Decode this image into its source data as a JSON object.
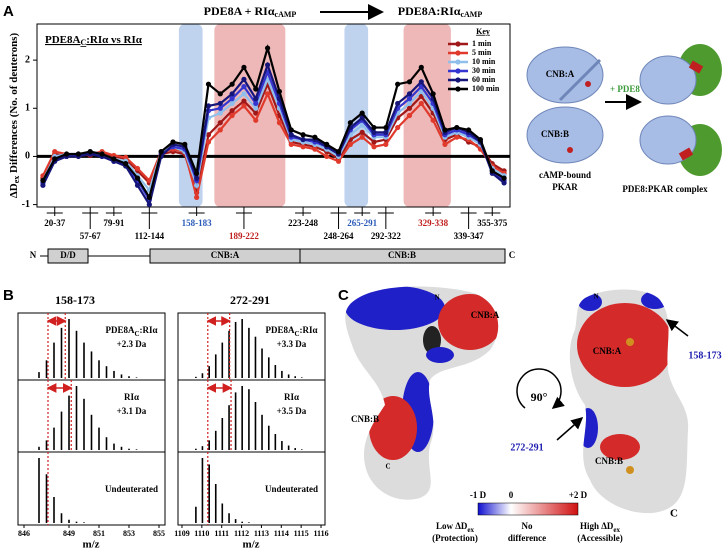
{
  "panels": {
    "a": "A",
    "b": "B",
    "c": "C"
  },
  "reaction": {
    "left_main": "PDE8A + RIα",
    "left_sub": "cAMP",
    "right_main": "PDE8A:RIα",
    "right_sub": "cAMP"
  },
  "schematic": {
    "cnb_a": "CNB:A",
    "cnb_b": "CNB:B",
    "addition": "+ PDE8",
    "left_caption": [
      "cAMP-bound",
      "PKAR"
    ],
    "right_caption": "PDE8:PKAR complex"
  },
  "domain_bar": {
    "n": "N",
    "dd": "D/D",
    "cnb_a": "CNB:A",
    "cnb_b": "CNB:B",
    "c": "C"
  },
  "panel_b": {
    "titles": [
      "158-173",
      "272-291"
    ],
    "xlabel": "m/z"
  },
  "structure": {
    "left": {
      "cnb_a": "CNB:A",
      "cnb_b": "CNB:B",
      "n": "N",
      "c": "C"
    },
    "right": {
      "cnb_a": "CNB:A",
      "cnb_b": "CNB:B",
      "n": "N",
      "c": "C"
    },
    "rotation": "90°",
    "callouts": [
      "158-173",
      "272-291"
    ],
    "colorbar": {
      "low": "-1 D",
      "mid": "0",
      "high": "+2 D"
    },
    "legend": {
      "low_main": "Low ΔD",
      "low_sub": "ex",
      "low_note": "(Protection)",
      "mid_lines": [
        "No",
        "difference"
      ],
      "high_main": "High ΔD",
      "high_sub": "ex",
      "high_note": "(Accessible)"
    }
  },
  "chart_data": [
    {
      "type": "line",
      "title_main": "PDE8A",
      "title_sub": "C",
      "title_rest": ":RIα vs RIα",
      "ylabel_main": "ΔD",
      "ylabel_sub": "ex",
      "ylabel_rest": " Differences (No. of deuterons)",
      "legend_title": "Key",
      "legend": "upper right",
      "categories": [
        null,
        "20-37",
        null,
        null,
        "57-67",
        null,
        "79-91",
        null,
        null,
        "112-144",
        null,
        null,
        null,
        "158-183",
        null,
        null,
        null,
        "189-222",
        null,
        null,
        null,
        null,
        "223-248",
        null,
        null,
        "248-264",
        null,
        "265-291",
        null,
        "292-322",
        null,
        null,
        null,
        "329-338",
        null,
        null,
        "339-347",
        null,
        "355-375",
        null
      ],
      "ylim": [
        -1.05,
        2.75
      ],
      "yticks": [
        -1,
        0,
        1,
        2
      ],
      "series": [
        {
          "name": "1 min",
          "color": "#a01818",
          "values": [
            -0.45,
            0.05,
            0.0,
            0.05,
            0.02,
            0.08,
            0.0,
            -0.05,
            -0.3,
            -0.55,
            0.05,
            0.1,
            0.05,
            -0.75,
            0.45,
            0.7,
            0.95,
            1.15,
            0.9,
            1.5,
            0.85,
            0.3,
            0.25,
            0.2,
            0.1,
            -0.05,
            0.35,
            0.5,
            0.3,
            0.35,
            0.8,
            1.0,
            1.25,
            0.9,
            0.35,
            0.45,
            0.3,
            0.2,
            -0.15,
            -0.3
          ]
        },
        {
          "name": "5 min",
          "color": "#e03a2c",
          "values": [
            -0.4,
            0.1,
            0.05,
            0.0,
            0.05,
            0.1,
            0.02,
            -0.02,
            -0.25,
            -0.5,
            0.1,
            0.15,
            0.1,
            -0.85,
            0.3,
            0.55,
            0.85,
            1.05,
            0.75,
            1.3,
            0.7,
            0.25,
            0.2,
            0.15,
            0.0,
            -0.1,
            0.25,
            0.4,
            0.2,
            0.25,
            0.6,
            0.85,
            1.1,
            0.75,
            0.25,
            0.4,
            0.35,
            0.15,
            -0.2,
            -0.35
          ]
        },
        {
          "name": "10 min",
          "color": "#8fbfea",
          "values": [
            -0.5,
            0.0,
            0.05,
            0.0,
            0.1,
            0.05,
            -0.05,
            -0.1,
            -0.4,
            -0.7,
            0.1,
            0.2,
            0.1,
            -0.6,
            0.8,
            0.9,
            1.1,
            1.3,
            1.0,
            1.6,
            1.0,
            0.35,
            0.3,
            0.25,
            0.15,
            0.0,
            0.45,
            0.65,
            0.4,
            0.4,
            0.9,
            1.1,
            1.35,
            1.0,
            0.4,
            0.5,
            0.4,
            0.25,
            -0.25,
            -0.4
          ]
        },
        {
          "name": "30 min",
          "color": "#3535d0",
          "values": [
            -0.55,
            -0.05,
            0.0,
            0.05,
            0.05,
            0.0,
            -0.1,
            -0.15,
            -0.5,
            -0.9,
            0.05,
            0.2,
            0.15,
            -0.5,
            0.95,
            1.0,
            1.2,
            1.45,
            1.1,
            1.75,
            1.1,
            0.4,
            0.35,
            0.3,
            0.2,
            0.05,
            0.55,
            0.75,
            0.45,
            0.45,
            1.0,
            1.2,
            1.45,
            1.1,
            0.45,
            0.55,
            0.45,
            0.3,
            -0.3,
            -0.5
          ]
        },
        {
          "name": "60 min",
          "color": "#16167a",
          "values": [
            -0.6,
            -0.1,
            0.0,
            0.0,
            0.05,
            0.0,
            -0.1,
            -0.2,
            -0.6,
            -1.0,
            0.0,
            0.25,
            0.2,
            -0.45,
            1.05,
            1.1,
            1.3,
            1.6,
            1.2,
            1.9,
            1.2,
            0.45,
            0.35,
            0.35,
            0.2,
            0.05,
            0.6,
            0.8,
            0.5,
            0.5,
            1.1,
            1.3,
            1.55,
            1.2,
            0.5,
            0.6,
            0.5,
            0.3,
            -0.35,
            -0.55
          ]
        },
        {
          "name": "100 min",
          "color": "#000000",
          "values": [
            -0.5,
            -0.05,
            0.05,
            0.05,
            0.1,
            0.05,
            -0.05,
            -0.15,
            -0.45,
            -0.85,
            0.1,
            0.3,
            0.25,
            -0.35,
            1.5,
            1.3,
            1.5,
            1.85,
            1.4,
            2.25,
            1.35,
            0.55,
            0.45,
            0.4,
            0.25,
            0.1,
            0.7,
            0.9,
            0.6,
            0.6,
            1.5,
            1.55,
            1.85,
            1.3,
            0.55,
            0.6,
            0.55,
            0.35,
            -0.3,
            -0.45
          ]
        }
      ]
    },
    {
      "type": "stick",
      "label_main": "PDE8A",
      "label_sub": "C",
      "label_rest": ":RIα",
      "shift": "+2.3 Da",
      "color": "#000000",
      "x": [
        847,
        847.5,
        848,
        848.5,
        849,
        849.5,
        850,
        850.5,
        851,
        851.5,
        852,
        852.5,
        853,
        853.5
      ],
      "values": [
        0.1,
        0.3,
        0.6,
        0.85,
        1.0,
        0.8,
        0.6,
        0.45,
        0.3,
        0.2,
        0.12,
        0.06,
        0.03,
        0.01
      ],
      "ref_lines": [
        847.6,
        848.75
      ],
      "xlim": [
        845.6,
        855.4
      ],
      "ylim": [
        0,
        1
      ]
    },
    {
      "type": "stick",
      "label_main": "RIα",
      "shift": "+3.1 Da",
      "color": "#000000",
      "x": [
        847,
        847.5,
        848,
        848.5,
        849,
        849.5,
        850,
        850.5,
        851,
        851.5,
        852,
        852.5,
        853,
        853.5
      ],
      "values": [
        0.05,
        0.15,
        0.35,
        0.6,
        0.85,
        1.0,
        0.8,
        0.55,
        0.35,
        0.2,
        0.1,
        0.05,
        0.02,
        0.01
      ],
      "ref_lines": [
        847.6,
        849.15
      ],
      "xlim": [
        845.6,
        855.4
      ],
      "ylim": [
        0,
        1
      ]
    },
    {
      "type": "stick",
      "label_main": "Undeuterated",
      "color": "#000000",
      "x": [
        847,
        847.5,
        848,
        848.5,
        849,
        849.5,
        850,
        850.5,
        851,
        851.5,
        852,
        852.5,
        853,
        853.5
      ],
      "values": [
        1.0,
        0.75,
        0.4,
        0.15,
        0.05,
        0.02,
        0.01,
        0,
        0,
        0,
        0,
        0,
        0,
        0
      ],
      "ref_lines": [
        847.6
      ],
      "xlim": [
        845.6,
        855.4
      ],
      "ylim": [
        0,
        1
      ],
      "xticks": [
        846,
        849,
        851,
        853,
        855
      ]
    },
    {
      "type": "stick",
      "label_main": "PDE8A",
      "label_sub": "C",
      "label_rest": ":RIα",
      "shift": "+3.3 Da",
      "color": "#000000",
      "x": [
        1109.7,
        1110.03,
        1110.37,
        1110.7,
        1111.03,
        1111.37,
        1111.7,
        1112.03,
        1112.37,
        1112.7,
        1113.03,
        1113.37,
        1113.7,
        1114.03,
        1114.37,
        1114.7,
        1115.03
      ],
      "values": [
        0.02,
        0.08,
        0.2,
        0.4,
        0.6,
        0.8,
        0.95,
        1.0,
        0.85,
        0.7,
        0.5,
        0.35,
        0.22,
        0.12,
        0.06,
        0.03,
        0.01
      ],
      "ref_lines": [
        1110.3,
        1111.4
      ],
      "xlim": [
        1108.8,
        1116.2
      ],
      "ylim": [
        0,
        1
      ]
    },
    {
      "type": "stick",
      "label_main": "RIα",
      "shift": "+3.5 Da",
      "color": "#000000",
      "x": [
        1109.7,
        1110.03,
        1110.37,
        1110.7,
        1111.03,
        1111.37,
        1111.7,
        1112.03,
        1112.37,
        1112.7,
        1113.03,
        1113.37,
        1113.7,
        1114.03,
        1114.37,
        1114.7,
        1115.03
      ],
      "values": [
        0.02,
        0.06,
        0.15,
        0.3,
        0.5,
        0.7,
        0.9,
        1.0,
        0.95,
        0.75,
        0.55,
        0.38,
        0.25,
        0.14,
        0.07,
        0.03,
        0.01
      ],
      "ref_lines": [
        1110.3,
        1111.47
      ],
      "xlim": [
        1108.8,
        1116.2
      ],
      "ylim": [
        0,
        1
      ]
    },
    {
      "type": "stick",
      "label_main": "Undeuterated",
      "color": "#000000",
      "x": [
        1109.7,
        1110.03,
        1110.37,
        1110.7,
        1111.03,
        1111.37,
        1111.7,
        1112.03,
        1112.37,
        1112.7,
        1113.03,
        1113.37,
        1113.7,
        1114.03,
        1114.37,
        1114.7,
        1115.03
      ],
      "values": [
        0.25,
        1.0,
        0.9,
        0.6,
        0.3,
        0.15,
        0.06,
        0.02,
        0.01,
        0,
        0,
        0,
        0,
        0,
        0,
        0,
        0
      ],
      "ref_lines": [
        1110.3
      ],
      "xlim": [
        1108.8,
        1116.2
      ],
      "ylim": [
        0,
        1
      ],
      "xticks": [
        1109,
        1110,
        1111,
        1112,
        1113,
        1114,
        1115,
        1116
      ]
    }
  ]
}
